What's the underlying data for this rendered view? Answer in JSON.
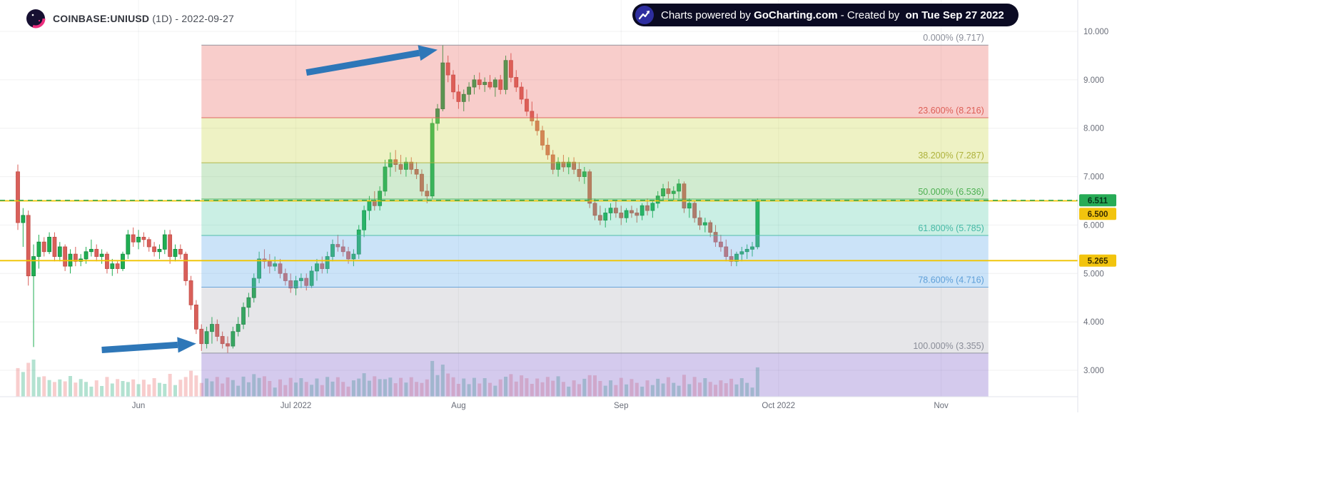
{
  "header": {
    "symbol": "COINBASE:UNIUSD",
    "subtitle": " (1D) - 2022-09-27"
  },
  "banner": {
    "segments": [
      {
        "text": "Charts powered by ",
        "bold": false
      },
      {
        "text": "GoCharting.com",
        "bold": true
      },
      {
        "text": " - Created by ",
        "bold": false
      },
      {
        "text": " on Tue Sep 27 2022",
        "bold": true
      }
    ]
  },
  "icons": {
    "logo": "gocharting-logo",
    "banner": "trending-up-icon"
  },
  "price_axis": {
    "min": 3,
    "max": 10,
    "tick_labels": [
      "10.000",
      "9.000",
      "8.000",
      "7.000",
      "6.000",
      "5.000",
      "4.000",
      "3.000"
    ]
  },
  "time_axis": {
    "ticks": [
      {
        "label": "Jun",
        "date": "2022-06-01"
      },
      {
        "label": "Jul 2022",
        "date": "2022-07-01"
      },
      {
        "label": "Aug",
        "date": "2022-08-01"
      },
      {
        "label": "Sep",
        "date": "2022-09-01"
      },
      {
        "label": "Oct 2022",
        "date": "2022-10-01"
      },
      {
        "label": "Nov",
        "date": "2022-11-01"
      }
    ]
  },
  "price_markers": [
    {
      "value": "6.511",
      "price": 6.511,
      "bg": "#27ab56",
      "fg": "#06331a",
      "type": "last-price"
    },
    {
      "value": "6.500",
      "price": 6.5,
      "bg": "#f2c40e",
      "fg": "#3a2e00",
      "type": "alert"
    },
    {
      "value": "5.265",
      "price": 5.265,
      "bg": "#f2c40e",
      "fg": "#3a2e00",
      "type": "alert"
    }
  ],
  "lines": {
    "last_price": 6.511,
    "last_price_color": "#2da85c",
    "horizontal": [
      6.5,
      5.265
    ],
    "alert_color": "#f0c400"
  },
  "fibonacci": {
    "start_date": "2022-06-13",
    "end_date": "2022-11-10",
    "levels": [
      {
        "label": "0.000% (9.717)",
        "price": 9.717,
        "color": "#8a8d98"
      },
      {
        "label": "23.600% (8.216)",
        "price": 8.216,
        "color": "#dd5e56"
      },
      {
        "label": "38.200% (7.287)",
        "price": 7.287,
        "color": "#aeb23c"
      },
      {
        "label": "50.000% (6.536)",
        "price": 6.536,
        "color": "#4caf50"
      },
      {
        "label": "61.800% (5.785)",
        "price": 5.785,
        "color": "#45b8a5"
      },
      {
        "label": "78.600% (4.716)",
        "price": 4.716,
        "color": "#5e9fd8"
      },
      {
        "label": "100.000% (3.355)",
        "price": 3.355,
        "color": "#8a8d98"
      }
    ],
    "bands": [
      {
        "from": 9.717,
        "to": 8.216,
        "fill": "rgba(231,90,82,0.30)"
      },
      {
        "from": 8.216,
        "to": 7.287,
        "fill": "rgba(202,215,72,0.32)"
      },
      {
        "from": 7.287,
        "to": 6.536,
        "fill": "rgba(112,194,110,0.32)"
      },
      {
        "from": 6.536,
        "to": 5.785,
        "fill": "rgba(66,196,157,0.28)"
      },
      {
        "from": 5.785,
        "to": 4.716,
        "fill": "rgba(106,175,235,0.35)"
      },
      {
        "from": 4.716,
        "to": 3.355,
        "fill": "rgba(140,143,154,0.22)"
      },
      {
        "from": 3.355,
        "to": 2.454,
        "fill": "rgba(124,94,201,0.33)"
      }
    ]
  },
  "annotations": {
    "color": "#2e77b8",
    "arrows": [
      {
        "from": {
          "date": "2022-07-03",
          "price": 9.15
        },
        "to": {
          "date": "2022-07-28",
          "price": 9.62
        }
      },
      {
        "from": {
          "date": "2022-05-25",
          "price": 3.42
        },
        "to": {
          "date": "2022-06-12",
          "price": 3.55
        }
      }
    ]
  },
  "chart_data": {
    "type": "candlestick",
    "title": "COINBASE:UNIUSD (1D)",
    "symbol": "COINBASE:UNIUSD",
    "interval": "1D",
    "ylim": [
      3,
      10
    ],
    "start_date": "2022-05-09",
    "last_close": 6.511,
    "up_color": "#1fae52",
    "up_border": "#148a3e",
    "down_color": "#d9605a",
    "down_border": "#c24d48",
    "vol_up_color": "rgba(64,182,140,0.40)",
    "vol_down_color": "rgba(235,112,112,0.35)",
    "ohlc": [
      [
        7.1,
        7.25,
        5.9,
        6.05
      ],
      [
        6.05,
        6.35,
        5.55,
        6.2
      ],
      [
        6.2,
        6.3,
        4.75,
        4.95
      ],
      [
        4.95,
        5.6,
        3.48,
        5.35
      ],
      [
        5.35,
        5.8,
        5.1,
        5.65
      ],
      [
        5.65,
        5.75,
        5.35,
        5.45
      ],
      [
        5.45,
        5.85,
        5.4,
        5.75
      ],
      [
        5.75,
        5.85,
        5.25,
        5.35
      ],
      [
        5.35,
        5.65,
        5.25,
        5.55
      ],
      [
        5.55,
        5.6,
        5.05,
        5.15
      ],
      [
        5.15,
        5.5,
        5.0,
        5.4
      ],
      [
        5.4,
        5.55,
        5.15,
        5.25
      ],
      [
        5.25,
        5.4,
        5.15,
        5.3
      ],
      [
        5.3,
        5.55,
        5.2,
        5.45
      ],
      [
        5.45,
        5.7,
        5.35,
        5.5
      ],
      [
        5.5,
        5.6,
        5.25,
        5.35
      ],
      [
        5.35,
        5.5,
        5.2,
        5.4
      ],
      [
        5.4,
        5.45,
        5.0,
        5.1
      ],
      [
        5.1,
        5.3,
        4.95,
        5.2
      ],
      [
        5.2,
        5.25,
        5.0,
        5.1
      ],
      [
        5.1,
        5.45,
        5.05,
        5.4
      ],
      [
        5.4,
        5.9,
        5.3,
        5.8
      ],
      [
        5.8,
        5.95,
        5.55,
        5.65
      ],
      [
        5.65,
        5.9,
        5.5,
        5.75
      ],
      [
        5.75,
        5.85,
        5.55,
        5.7
      ],
      [
        5.7,
        5.75,
        5.45,
        5.55
      ],
      [
        5.55,
        5.65,
        5.35,
        5.45
      ],
      [
        5.45,
        5.6,
        5.3,
        5.5
      ],
      [
        5.5,
        5.9,
        5.4,
        5.8
      ],
      [
        5.8,
        5.9,
        5.2,
        5.35
      ],
      [
        5.35,
        5.6,
        5.25,
        5.5
      ],
      [
        5.5,
        5.6,
        5.3,
        5.4
      ],
      [
        5.4,
        5.45,
        4.75,
        4.85
      ],
      [
        4.85,
        4.95,
        4.25,
        4.35
      ],
      [
        4.35,
        4.45,
        3.75,
        3.85
      ],
      [
        3.85,
        3.95,
        3.4,
        3.55
      ],
      [
        3.55,
        3.9,
        3.45,
        3.8
      ],
      [
        3.8,
        4.1,
        3.55,
        3.95
      ],
      [
        3.95,
        4.05,
        3.6,
        3.7
      ],
      [
        3.7,
        3.8,
        3.45,
        3.55
      ],
      [
        3.55,
        3.7,
        3.36,
        3.5
      ],
      [
        3.5,
        3.9,
        3.45,
        3.8
      ],
      [
        3.8,
        4.1,
        3.7,
        3.95
      ],
      [
        3.95,
        4.4,
        3.85,
        4.3
      ],
      [
        4.3,
        4.6,
        4.1,
        4.5
      ],
      [
        4.5,
        5.0,
        4.4,
        4.9
      ],
      [
        4.9,
        5.45,
        4.8,
        5.3
      ],
      [
        5.3,
        5.5,
        5.1,
        5.25
      ],
      [
        5.25,
        5.4,
        5.0,
        5.15
      ],
      [
        5.15,
        5.35,
        5.05,
        5.2
      ],
      [
        5.2,
        5.3,
        4.9,
        5.0
      ],
      [
        5.0,
        5.1,
        4.75,
        4.85
      ],
      [
        4.85,
        5.0,
        4.6,
        4.7
      ],
      [
        4.7,
        4.95,
        4.55,
        4.85
      ],
      [
        4.85,
        5.0,
        4.7,
        4.9
      ],
      [
        4.9,
        5.0,
        4.65,
        4.75
      ],
      [
        4.75,
        5.15,
        4.7,
        5.05
      ],
      [
        5.05,
        5.3,
        4.85,
        5.2
      ],
      [
        5.2,
        5.35,
        5.0,
        5.1
      ],
      [
        5.1,
        5.45,
        5.0,
        5.35
      ],
      [
        5.35,
        5.7,
        5.25,
        5.6
      ],
      [
        5.6,
        5.8,
        5.45,
        5.55
      ],
      [
        5.55,
        5.7,
        5.35,
        5.45
      ],
      [
        5.45,
        5.55,
        5.2,
        5.3
      ],
      [
        5.3,
        5.5,
        5.15,
        5.4
      ],
      [
        5.4,
        6.0,
        5.3,
        5.9
      ],
      [
        5.9,
        6.4,
        5.75,
        6.3
      ],
      [
        6.3,
        6.6,
        6.1,
        6.5
      ],
      [
        6.5,
        6.7,
        6.3,
        6.4
      ],
      [
        6.4,
        6.8,
        6.3,
        6.7
      ],
      [
        6.7,
        7.35,
        6.6,
        7.2
      ],
      [
        7.2,
        7.5,
        7.0,
        7.35
      ],
      [
        7.35,
        7.55,
        7.1,
        7.25
      ],
      [
        7.25,
        7.45,
        7.05,
        7.15
      ],
      [
        7.15,
        7.4,
        7.0,
        7.3
      ],
      [
        7.3,
        7.4,
        7.05,
        7.15
      ],
      [
        7.15,
        7.3,
        6.95,
        7.05
      ],
      [
        7.05,
        7.15,
        6.6,
        6.7
      ],
      [
        6.7,
        6.85,
        6.45,
        6.6
      ],
      [
        6.6,
        8.2,
        6.55,
        8.1
      ],
      [
        8.1,
        8.5,
        7.95,
        8.4
      ],
      [
        8.4,
        9.717,
        8.35,
        9.35
      ],
      [
        9.35,
        9.5,
        8.95,
        9.1
      ],
      [
        9.1,
        9.2,
        8.6,
        8.75
      ],
      [
        8.75,
        8.9,
        8.4,
        8.55
      ],
      [
        8.55,
        8.8,
        8.35,
        8.7
      ],
      [
        8.7,
        8.95,
        8.55,
        8.85
      ],
      [
        8.85,
        9.1,
        8.7,
        9.0
      ],
      [
        9.0,
        9.15,
        8.8,
        8.9
      ],
      [
        8.9,
        9.05,
        8.75,
        8.95
      ],
      [
        8.95,
        9.1,
        8.8,
        8.85
      ],
      [
        8.85,
        9.05,
        8.65,
        9.0
      ],
      [
        9.0,
        9.1,
        8.7,
        8.8
      ],
      [
        8.8,
        9.5,
        8.7,
        9.4
      ],
      [
        9.4,
        9.55,
        8.95,
        9.05
      ],
      [
        9.05,
        9.2,
        8.75,
        8.85
      ],
      [
        8.85,
        8.95,
        8.5,
        8.6
      ],
      [
        8.6,
        8.8,
        8.25,
        8.35
      ],
      [
        8.35,
        8.55,
        8.05,
        8.15
      ],
      [
        8.15,
        8.3,
        7.85,
        7.95
      ],
      [
        7.95,
        8.05,
        7.55,
        7.65
      ],
      [
        7.65,
        7.8,
        7.35,
        7.45
      ],
      [
        7.45,
        7.55,
        7.05,
        7.15
      ],
      [
        7.15,
        7.4,
        7.0,
        7.3
      ],
      [
        7.3,
        7.45,
        7.1,
        7.2
      ],
      [
        7.2,
        7.4,
        7.05,
        7.3
      ],
      [
        7.3,
        7.4,
        7.05,
        7.15
      ],
      [
        7.15,
        7.3,
        6.9,
        7.0
      ],
      [
        7.0,
        7.2,
        6.85,
        7.1
      ],
      [
        7.1,
        7.15,
        6.35,
        6.45
      ],
      [
        6.45,
        6.55,
        6.1,
        6.2
      ],
      [
        6.2,
        6.4,
        6.0,
        6.1
      ],
      [
        6.1,
        6.35,
        5.95,
        6.25
      ],
      [
        6.25,
        6.45,
        6.1,
        6.35
      ],
      [
        6.35,
        6.5,
        6.15,
        6.25
      ],
      [
        6.25,
        6.4,
        6.0,
        6.15
      ],
      [
        6.15,
        6.35,
        6.05,
        6.3
      ],
      [
        6.3,
        6.4,
        6.15,
        6.25
      ],
      [
        6.25,
        6.35,
        6.05,
        6.2
      ],
      [
        6.2,
        6.45,
        6.1,
        6.4
      ],
      [
        6.4,
        6.55,
        6.2,
        6.3
      ],
      [
        6.3,
        6.5,
        6.15,
        6.45
      ],
      [
        6.45,
        6.7,
        6.35,
        6.6
      ],
      [
        6.6,
        6.85,
        6.5,
        6.75
      ],
      [
        6.75,
        6.9,
        6.55,
        6.65
      ],
      [
        6.65,
        6.8,
        6.5,
        6.7
      ],
      [
        6.7,
        6.95,
        6.55,
        6.85
      ],
      [
        6.85,
        6.9,
        6.25,
        6.35
      ],
      [
        6.35,
        6.55,
        6.15,
        6.45
      ],
      [
        6.45,
        6.5,
        6.05,
        6.15
      ],
      [
        6.15,
        6.3,
        5.9,
        6.0
      ],
      [
        6.0,
        6.15,
        5.85,
        6.05
      ],
      [
        6.05,
        6.1,
        5.75,
        5.85
      ],
      [
        5.85,
        6.0,
        5.55,
        5.65
      ],
      [
        5.65,
        5.8,
        5.45,
        5.55
      ],
      [
        5.55,
        5.7,
        5.25,
        5.35
      ],
      [
        5.35,
        5.5,
        5.15,
        5.25
      ],
      [
        5.25,
        5.45,
        5.15,
        5.4
      ],
      [
        5.4,
        5.55,
        5.25,
        5.45
      ],
      [
        5.45,
        5.6,
        5.3,
        5.5
      ],
      [
        5.5,
        5.65,
        5.35,
        5.55
      ],
      [
        5.55,
        6.55,
        5.5,
        6.511
      ]
    ]
  }
}
